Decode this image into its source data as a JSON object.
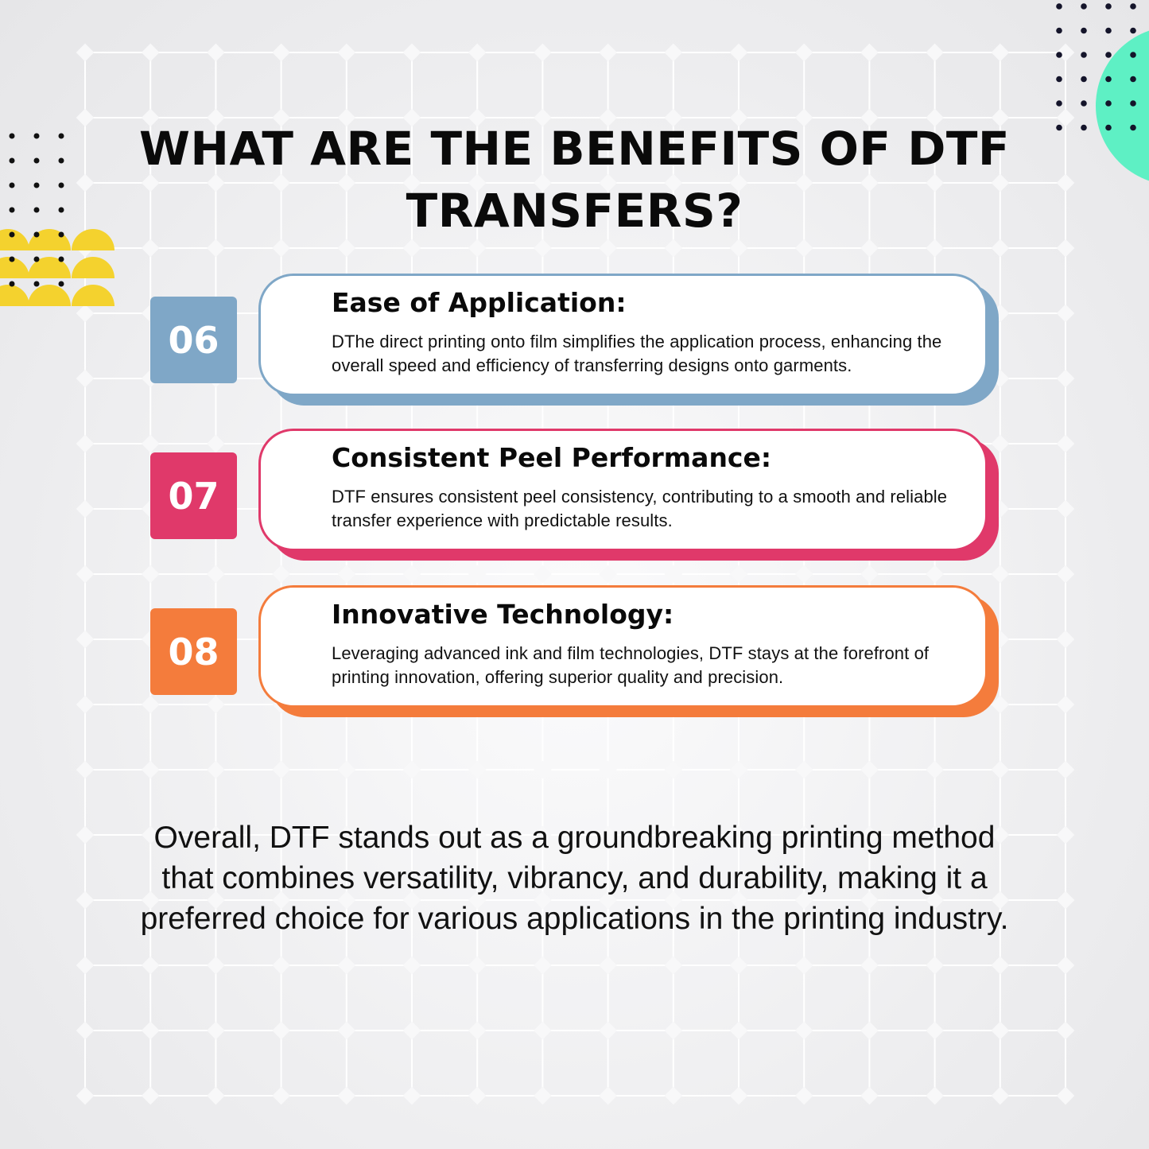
{
  "title": "WHAT ARE THE BENEFITS OF DTF TRANSFERS?",
  "colors": {
    "blue": "#7fa7c7",
    "pink": "#e0396a",
    "orange": "#f47c3c",
    "yellow": "#f4d22e",
    "mint": "#5ef0c4"
  },
  "items": [
    {
      "number": "06",
      "heading": "Ease of Application:",
      "text": "DThe direct printing onto film simplifies the application process, enhancing the overall speed and efficiency of transferring designs onto garments.",
      "color": "#7fa7c7"
    },
    {
      "number": "07",
      "heading": "Consistent Peel Performance:",
      "text": "DTF ensures consistent peel consistency, contributing to a smooth and reliable transfer experience with predictable results.",
      "color": "#e0396a"
    },
    {
      "number": "08",
      "heading": "Innovative Technology:",
      "text": "Leveraging advanced ink and film technologies, DTF stays at the forefront of printing innovation, offering superior quality and precision.",
      "color": "#f47c3c"
    }
  ],
  "summary": "Overall, DTF stands out as a groundbreaking printing method that combines versatility, vibrancy, and durability, making it a preferred choice for various applications in the printing industry."
}
